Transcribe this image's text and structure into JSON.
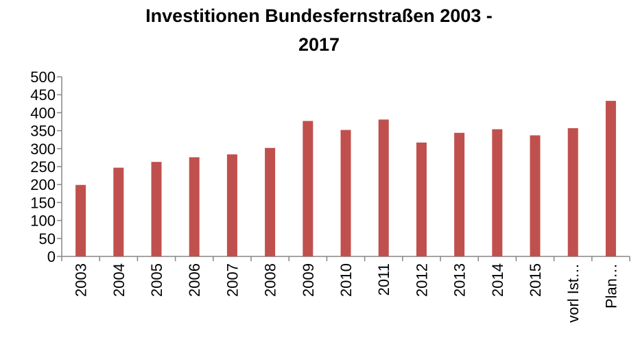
{
  "chart_data": {
    "type": "bar",
    "title_line1": "Investitionen Bundesfernstraßen  2003 -",
    "title_line2": "2017",
    "categories": [
      "2003",
      "2004",
      "2005",
      "2006",
      "2007",
      "2008",
      "2009",
      "2010",
      "2011",
      "2012",
      "2013",
      "2014",
      "2015",
      "vorl Ist…",
      "Plan…"
    ],
    "values": [
      199,
      247,
      263,
      276,
      284,
      302,
      377,
      352,
      381,
      317,
      344,
      354,
      337,
      357,
      433
    ],
    "ylim": [
      0,
      500
    ],
    "yticks": [
      0,
      50,
      100,
      150,
      200,
      250,
      300,
      350,
      400,
      450,
      500
    ],
    "grid": false,
    "legend": "none",
    "bar_color": "#C0504D"
  }
}
